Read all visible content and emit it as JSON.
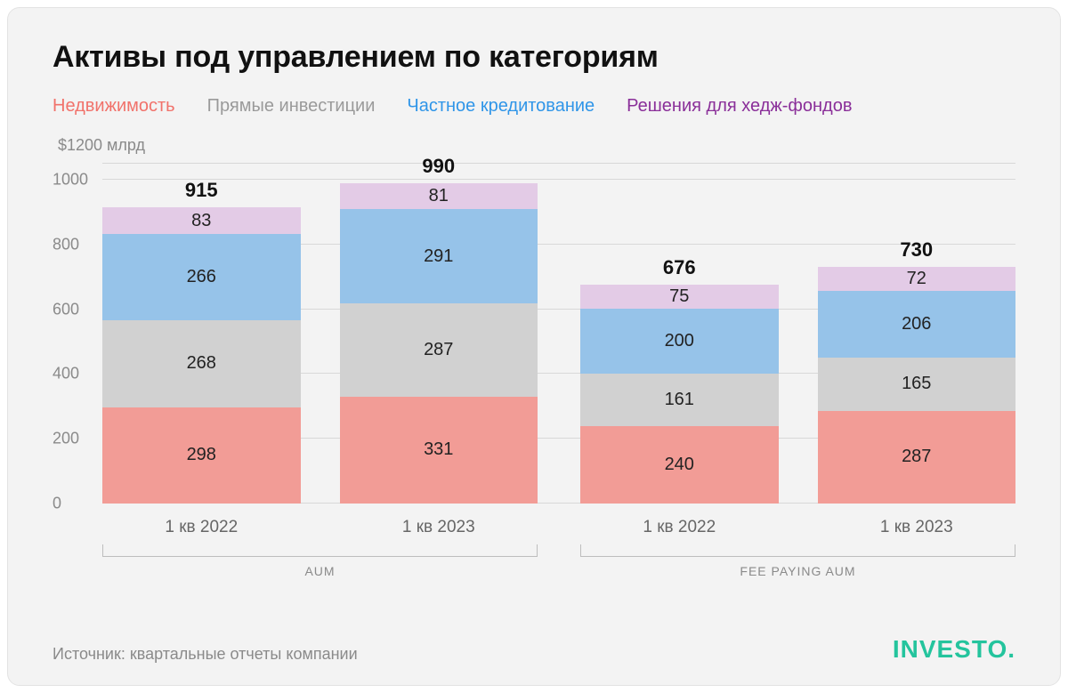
{
  "title": "Активы под управлением по категориям",
  "legend": [
    {
      "label": "Недвижимость",
      "color": "#f1726b"
    },
    {
      "label": "Прямые инвестиции",
      "color": "#9a9a9a"
    },
    {
      "label": "Частное кредитование",
      "color": "#2f95e8"
    },
    {
      "label": "Решения для хедж-фондов",
      "color": "#8a2f99"
    }
  ],
  "y_top_label": "$1200 млрд",
  "chart": {
    "type": "stacked-bar",
    "y_max": 1050,
    "y_ticks": [
      0,
      200,
      400,
      600,
      800,
      1000
    ],
    "y_extra_grid": [
      1050
    ],
    "background_color": "#f3f3f3",
    "grid_color": "#d8d8d8",
    "label_color": "#8a8a8a",
    "value_fontsize": 20,
    "total_fontsize": 22,
    "segment_colors": {
      "real_estate": "#f29c96",
      "private_equity": "#d1d1d1",
      "private_credit": "#96c3e9",
      "hedge": "#e3cbe6"
    },
    "groups": [
      {
        "name": "AUM",
        "bars": [
          {
            "x": "1 кв 2022",
            "total": 915,
            "segments": [
              {
                "key": "real_estate",
                "value": 298
              },
              {
                "key": "private_equity",
                "value": 268
              },
              {
                "key": "private_credit",
                "value": 266
              },
              {
                "key": "hedge",
                "value": 83
              }
            ]
          },
          {
            "x": "1 кв 2023",
            "total": 990,
            "segments": [
              {
                "key": "real_estate",
                "value": 331
              },
              {
                "key": "private_equity",
                "value": 287
              },
              {
                "key": "private_credit",
                "value": 291
              },
              {
                "key": "hedge",
                "value": 81
              }
            ]
          }
        ]
      },
      {
        "name": "FEE PAYING AUM",
        "bars": [
          {
            "x": "1 кв 2022",
            "total": 676,
            "segments": [
              {
                "key": "real_estate",
                "value": 240
              },
              {
                "key": "private_equity",
                "value": 161
              },
              {
                "key": "private_credit",
                "value": 200
              },
              {
                "key": "hedge",
                "value": 75
              }
            ]
          },
          {
            "x": "1 кв 2023",
            "total": 730,
            "segments": [
              {
                "key": "real_estate",
                "value": 287
              },
              {
                "key": "private_equity",
                "value": 165
              },
              {
                "key": "private_credit",
                "value": 206
              },
              {
                "key": "hedge",
                "value": 72
              }
            ]
          }
        ]
      }
    ]
  },
  "source": "Источник: квартальные отчеты компании",
  "brand": {
    "text": "INVESTO.",
    "color": "#24c49d"
  }
}
